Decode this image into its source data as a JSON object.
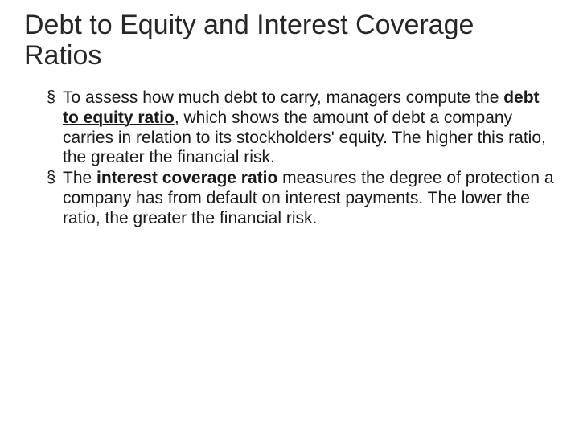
{
  "slide": {
    "title": "Debt to Equity and Interest Coverage Ratios",
    "bullets": [
      {
        "pre": "To assess how much debt to carry, managers compute the ",
        "term": "debt to equity ratio",
        "term_style": "bold-underline",
        "post": ", which shows the amount of debt a company carries in relation to its stockholders'  equity. The higher this ratio, the greater the financial risk."
      },
      {
        "pre": "The ",
        "term": "interest coverage ratio",
        "term_style": "bold-only",
        "post": " measures the degree of protection a company has from default on interest payments. The lower the ratio, the greater the financial risk."
      }
    ]
  },
  "colors": {
    "background": "#ffffff",
    "title_color": "#272727",
    "text_color": "#1a1a1a"
  },
  "typography": {
    "title_fontsize": 34,
    "title_weight": 300,
    "body_fontsize": 21,
    "body_weight": 400,
    "bold_weight": 700
  }
}
